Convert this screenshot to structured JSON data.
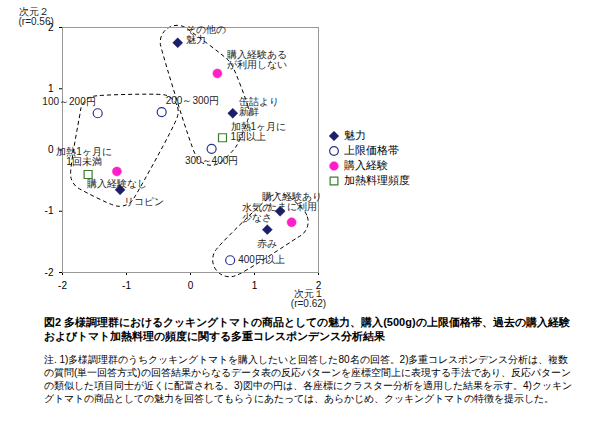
{
  "chart_data": {
    "type": "scatter",
    "title": "図2 多様調理群におけるクッキングトマトの商品としての魅力、購入(500g)の上限価格帯、過去の購入経験およびトマト加熱料理の頻度に関する多重コレスポンデンス分析結果",
    "notes": "注. 1)多様調理群のうちクッキングトマトを購入したいと回答した80名の回答。2)多重コレスポンデンス分析は、複数の質問(単一回答方式)の回答結果からなるデータ表の反応パターンを座標空間上に表現する手法であり、反応パターンの類似した項目同士が近くに配置される。3)図中の円は、各座標にクラスター分析を適用した結果を示す。4)クッキングトマトの商品としての魅力を回答してもらうにあたっては、あらかじめ、クッキングトマトの特徴を提示した。",
    "x_label": "次元１\n(r=0.62)",
    "y_label": "次元２\n(r=0.56)",
    "xlim": [
      -2,
      2
    ],
    "ylim": [
      -2,
      2
    ],
    "xticks": [
      -2,
      -1,
      0,
      1,
      2
    ],
    "yticks": [
      -2,
      -1,
      0,
      1,
      2
    ],
    "legend": "right",
    "series": [
      {
        "name": "魅力",
        "color": "#1b1f6b",
        "marker": "diamond",
        "x": [
          -0.2,
          0.66,
          -1.1,
          1.4,
          1.2
        ],
        "values": [
          1.75,
          0.6,
          -0.65,
          -1.0,
          -1.3
        ],
        "labels": [
          "その他の\n魅力",
          "缶詰より\n新鮮",
          "リコピン",
          "水気の\n少なさ",
          "赤み"
        ],
        "cluster": [
          1,
          1,
          2,
          3,
          3
        ]
      },
      {
        "name": "上限価格帯",
        "color": "#27348b",
        "marker": "circle_open",
        "x": [
          -1.45,
          -0.45,
          0.33,
          0.62
        ],
        "values": [
          0.6,
          0.62,
          0.02,
          -1.8
        ],
        "labels": [
          "100～200円",
          "200～300円",
          "300～400円",
          "400円以上"
        ],
        "cluster": [
          2,
          2,
          1,
          3
        ]
      },
      {
        "name": "購入経験",
        "color": "#ff1fc8",
        "marker": "circle",
        "x": [
          0.42,
          -1.15,
          1.58
        ],
        "values": [
          1.25,
          -0.35,
          -1.18
        ],
        "labels": [
          "購入経験ある\nが利用しない",
          "購入経験なし",
          "購入経験あり\nたまに利用"
        ],
        "cluster": [
          1,
          2,
          3
        ]
      },
      {
        "name": "加熱料理頻度",
        "color": "#3c7d2c",
        "marker": "square_open",
        "x": [
          0.5,
          -1.6
        ],
        "values": [
          0.2,
          -0.4
        ],
        "labels": [
          "加熱1ヶ月に\n1回以上",
          "加熱1ヶ月に\n1回未満"
        ],
        "cluster": [
          1,
          2
        ]
      }
    ]
  }
}
